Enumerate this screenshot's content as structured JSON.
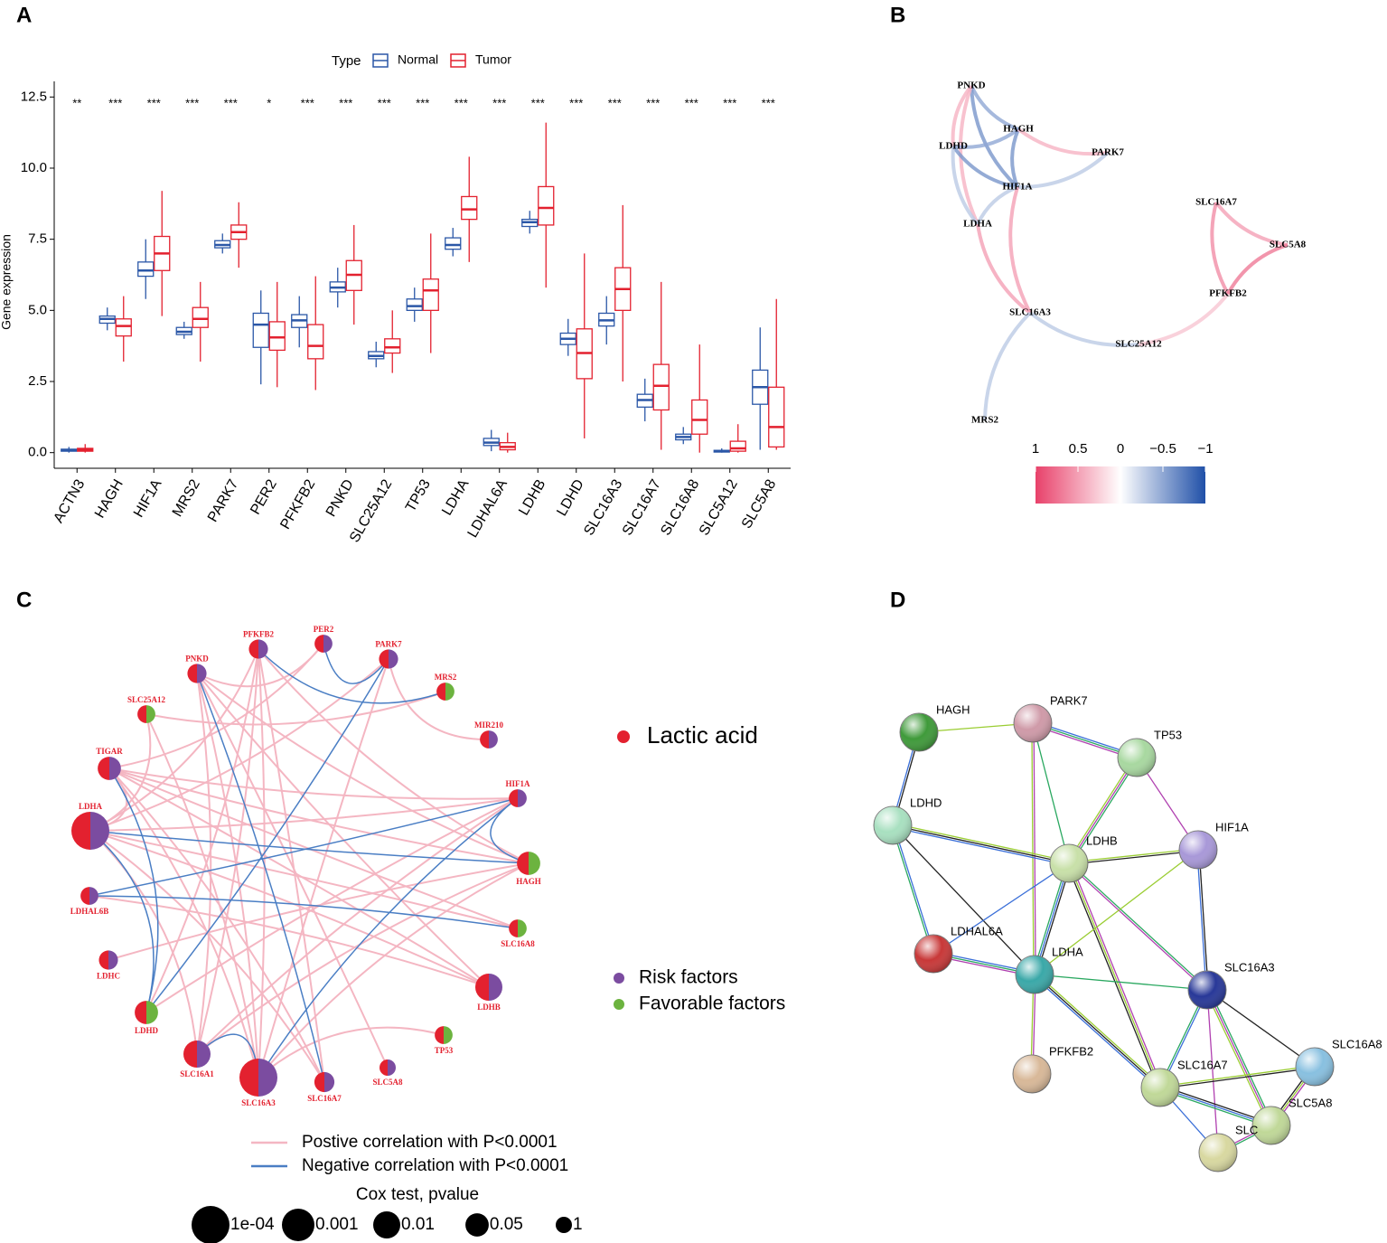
{
  "panel_labels": [
    "A",
    "B",
    "C",
    "D"
  ],
  "chart_data": [
    {
      "type": "box",
      "y_label": "Gene expression",
      "legend_title": "Type",
      "categories": [
        "ACTN3",
        "HAGH",
        "HIF1A",
        "MRS2",
        "PARK7",
        "PER2",
        "PFKFB2",
        "PNKD",
        "SLC25A12",
        "TP53",
        "LDHA",
        "LDHAL6A",
        "LDHB",
        "LDHD",
        "SLC16A3",
        "SLC16A7",
        "SLC16A8",
        "SLC5A12",
        "SLC5A8"
      ],
      "significance": [
        "**",
        "***",
        "***",
        "***",
        "***",
        "*",
        "***",
        "***",
        "***",
        "***",
        "***",
        "***",
        "***",
        "***",
        "***",
        "***",
        "***",
        "***",
        "***"
      ],
      "series": [
        {
          "name": "Normal",
          "color": "#2b57a7",
          "values": [
            [
              0,
              0.05,
              0.08,
              0.12,
              0.2
            ],
            [
              4.3,
              4.55,
              4.7,
              4.8,
              5.1
            ],
            [
              5.4,
              6.2,
              6.4,
              6.7,
              7.5
            ],
            [
              4.0,
              4.15,
              4.25,
              4.4,
              4.6
            ],
            [
              7.0,
              7.2,
              7.3,
              7.45,
              7.7
            ],
            [
              2.4,
              3.7,
              4.5,
              4.9,
              5.7
            ],
            [
              3.7,
              4.4,
              4.65,
              4.85,
              5.5
            ],
            [
              5.1,
              5.65,
              5.8,
              6.0,
              6.5
            ],
            [
              3.0,
              3.3,
              3.4,
              3.55,
              3.9
            ],
            [
              4.6,
              5.0,
              5.15,
              5.4,
              5.8
            ],
            [
              6.9,
              7.15,
              7.3,
              7.55,
              7.9
            ],
            [
              0.05,
              0.25,
              0.35,
              0.5,
              0.8
            ],
            [
              7.7,
              7.95,
              8.1,
              8.2,
              8.5
            ],
            [
              3.4,
              3.8,
              4.0,
              4.2,
              4.7
            ],
            [
              3.8,
              4.45,
              4.65,
              4.9,
              5.5
            ],
            [
              1.1,
              1.6,
              1.85,
              2.05,
              2.6
            ],
            [
              0.3,
              0.45,
              0.55,
              0.65,
              0.9
            ],
            [
              0,
              0.02,
              0.05,
              0.08,
              0.15
            ],
            [
              0.1,
              1.7,
              2.3,
              2.9,
              4.4
            ]
          ]
        },
        {
          "name": "Tumor",
          "color": "#e3212f",
          "values": [
            [
              0,
              0.05,
              0.1,
              0.15,
              0.3
            ],
            [
              3.2,
              4.1,
              4.45,
              4.7,
              5.5
            ],
            [
              4.8,
              6.4,
              7.0,
              7.6,
              9.2
            ],
            [
              3.2,
              4.4,
              4.7,
              5.1,
              6.0
            ],
            [
              6.5,
              7.5,
              7.75,
              8.0,
              8.8
            ],
            [
              2.3,
              3.6,
              4.05,
              4.6,
              6.0
            ],
            [
              2.2,
              3.3,
              3.75,
              4.5,
              6.2
            ],
            [
              4.5,
              5.7,
              6.25,
              6.75,
              8.0
            ],
            [
              2.8,
              3.5,
              3.7,
              4.0,
              5.0
            ],
            [
              3.5,
              5.0,
              5.7,
              6.1,
              7.7
            ],
            [
              6.7,
              8.2,
              8.55,
              9.0,
              10.4
            ],
            [
              0,
              0.1,
              0.2,
              0.35,
              0.7
            ],
            [
              5.8,
              8.0,
              8.6,
              9.35,
              11.6
            ],
            [
              0.5,
              2.6,
              3.5,
              4.35,
              7.0
            ],
            [
              2.5,
              5.0,
              5.75,
              6.5,
              8.7
            ],
            [
              0.1,
              1.5,
              2.35,
              3.1,
              6.0
            ],
            [
              0,
              0.65,
              1.15,
              1.85,
              3.8
            ],
            [
              0,
              0.05,
              0.15,
              0.4,
              1.0
            ],
            [
              0.1,
              0.2,
              0.9,
              2.3,
              5.4
            ]
          ]
        }
      ],
      "ylim": [
        -0.55,
        13.05
      ],
      "yticks": [
        {
          "value": 0,
          "label": "0.0"
        },
        2.5,
        {
          "value": 5,
          "label": "5.0"
        },
        7.5,
        {
          "value": 10,
          "label": "10.0"
        },
        12.5
      ]
    },
    {
      "type": "network",
      "nodes": [
        "PNKD",
        "HAGH",
        "LDHD",
        "PARK7",
        "HIF1A",
        "SLC16A7",
        "LDHA",
        "SLC5A8",
        "PFKFB2",
        "SLC16A3",
        "SLC25A12",
        "MRS2"
      ],
      "edges": [
        [
          0,
          1,
          -0.5
        ],
        [
          0,
          4,
          -0.6
        ],
        [
          0,
          2,
          0.4
        ],
        [
          0,
          6,
          0.4
        ],
        [
          2,
          1,
          -0.5
        ],
        [
          2,
          4,
          -0.6
        ],
        [
          2,
          6,
          -0.3
        ],
        [
          1,
          4,
          -0.6
        ],
        [
          1,
          3,
          0.4
        ],
        [
          4,
          3,
          -0.3
        ],
        [
          4,
          6,
          -0.3
        ],
        [
          4,
          9,
          0.5
        ],
        [
          6,
          9,
          0.5
        ],
        [
          9,
          10,
          -0.3
        ],
        [
          9,
          11,
          -0.3
        ],
        [
          10,
          8,
          0.3
        ],
        [
          5,
          7,
          0.5
        ],
        [
          5,
          8,
          0.6
        ],
        [
          7,
          8,
          0.7
        ]
      ],
      "pos_color": "#e8416a",
      "neg_color": "#2050a8",
      "colorbar_ticks": [
        1,
        0.5,
        0,
        {
          "value": -0.5,
          "label": "−0.5"
        },
        {
          "value": -1,
          "label": "−1"
        }
      ]
    },
    {
      "type": "network",
      "nodes": [
        {
          "name": "PFKFB2",
          "factor": 0,
          "pvalue": 0.3
        },
        {
          "name": "PER2",
          "factor": 0,
          "pvalue": 0.5
        },
        {
          "name": "PARK7",
          "factor": 0,
          "pvalue": 0.3
        },
        {
          "name": "MRS2",
          "factor": 1,
          "pvalue": 0.5
        },
        {
          "name": "MIR210",
          "factor": 0,
          "pvalue": 0.5
        },
        {
          "name": "HIF1A",
          "factor": 0,
          "pvalue": 0.5
        },
        {
          "name": "HAGH",
          "factor": 1,
          "pvalue": 0.05
        },
        {
          "name": "SLC16A8",
          "factor": 1,
          "pvalue": 0.5
        },
        {
          "name": "LDHB",
          "factor": 0,
          "pvalue": 0.01
        },
        {
          "name": "TP53",
          "factor": 1,
          "pvalue": 0.5
        },
        {
          "name": "SLC5A8",
          "factor": 0,
          "pvalue": 1
        },
        {
          "name": "SLC16A7",
          "factor": 0,
          "pvalue": 0.2
        },
        {
          "name": "SLC16A3",
          "factor": 0,
          "pvalue": 0.0001
        },
        {
          "name": "SLC16A1",
          "factor": 0,
          "pvalue": 0.01
        },
        {
          "name": "LDHD",
          "factor": 1,
          "pvalue": 0.05
        },
        {
          "name": "LDHC",
          "factor": 0,
          "pvalue": 0.3
        },
        {
          "name": "LDHAL6B",
          "factor": 0,
          "pvalue": 0.5
        },
        {
          "name": "LDHA",
          "factor": 0,
          "pvalue": 0.0001
        },
        {
          "name": "TIGAR",
          "factor": 0,
          "pvalue": 0.05
        },
        {
          "name": "SLC25A12",
          "factor": 1,
          "pvalue": 0.5
        },
        {
          "name": "PNKD",
          "factor": 0,
          "pvalue": 0.3
        }
      ],
      "positive": [
        [
          0,
          13
        ],
        [
          0,
          12
        ],
        [
          0,
          17
        ],
        [
          0,
          6
        ],
        [
          1,
          18
        ],
        [
          2,
          12
        ],
        [
          2,
          17
        ],
        [
          3,
          19
        ],
        [
          5,
          18
        ],
        [
          5,
          13
        ],
        [
          5,
          17
        ],
        [
          6,
          13
        ],
        [
          6,
          12
        ],
        [
          6,
          18
        ],
        [
          6,
          20
        ],
        [
          7,
          17
        ],
        [
          8,
          17
        ],
        [
          8,
          20
        ],
        [
          8,
          18
        ],
        [
          9,
          12
        ],
        [
          10,
          20
        ],
        [
          11,
          18
        ],
        [
          11,
          17
        ],
        [
          11,
          0
        ],
        [
          12,
          18
        ],
        [
          12,
          20
        ],
        [
          13,
          17
        ],
        [
          13,
          20
        ],
        [
          14,
          5
        ],
        [
          15,
          6
        ],
        [
          16,
          8
        ],
        [
          17,
          18
        ],
        [
          18,
          7
        ],
        [
          19,
          12
        ],
        [
          20,
          1
        ],
        [
          0,
          14
        ],
        [
          19,
          17
        ],
        [
          2,
          4
        ]
      ],
      "negative": [
        [
          1,
          2
        ],
        [
          2,
          14
        ],
        [
          20,
          11
        ],
        [
          5,
          16
        ],
        [
          5,
          6
        ],
        [
          6,
          17
        ],
        [
          17,
          14
        ],
        [
          18,
          14
        ],
        [
          13,
          12
        ],
        [
          12,
          5
        ],
        [
          16,
          7
        ],
        [
          0,
          3
        ]
      ],
      "lactic_label": "Lactic acid",
      "lactic_color": "#e3212f",
      "factor_labels": [
        "Risk factors",
        "Favorable factors"
      ],
      "factor_colors": [
        "#7b4ca0",
        "#6cb33f"
      ],
      "edge_labels": [
        "Postive correlation with P<0.0001",
        "Negative correlation with P<0.0001"
      ],
      "edge_colors": [
        "#f4b6c2",
        "#4a7ec4"
      ],
      "size_title": "Cox test, pvalue",
      "size_legend": [
        {
          "value": 0.0001,
          "label": "1e-04"
        },
        0.001,
        0.01,
        0.05,
        1
      ]
    },
    {
      "type": "network",
      "nodes": [
        {
          "name": "HAGH",
          "color": "#3f9a3a"
        },
        {
          "name": "PARK7",
          "color": "#cf9aa8"
        },
        {
          "name": "TP53",
          "color": "#a8d8a0"
        },
        {
          "name": "LDHD",
          "color": "#a8e0c0"
        },
        {
          "name": "LDHB",
          "color": "#c8e0a8"
        },
        {
          "name": "HIF1A",
          "color": "#a898d8"
        },
        {
          "name": "LDHAL6A",
          "color": "#c83838"
        },
        {
          "name": "LDHA",
          "color": "#3aa8a8"
        },
        {
          "name": "SLC16A3",
          "color": "#283898"
        },
        {
          "name": "PFKFB2",
          "color": "#d8b898"
        },
        {
          "name": "SLC16A8",
          "color": "#88c0e0"
        },
        {
          "name": "SLC16A7",
          "color": "#c0d898"
        },
        {
          "name": "SLC5A8",
          "color": "#c0d898"
        },
        {
          "name": "SLC",
          "color": "#d8d8a0"
        }
      ],
      "edges": [
        [
          0,
          1
        ],
        [
          0,
          3
        ],
        [
          1,
          2
        ],
        [
          1,
          4
        ],
        [
          1,
          7
        ],
        [
          3,
          4
        ],
        [
          3,
          7
        ],
        [
          3,
          6
        ],
        [
          2,
          4
        ],
        [
          2,
          5
        ],
        [
          4,
          5
        ],
        [
          4,
          7
        ],
        [
          4,
          6
        ],
        [
          4,
          8
        ],
        [
          4,
          11
        ],
        [
          5,
          7
        ],
        [
          5,
          8
        ],
        [
          6,
          7
        ],
        [
          7,
          8
        ],
        [
          7,
          9
        ],
        [
          7,
          11
        ],
        [
          8,
          10
        ],
        [
          8,
          11
        ],
        [
          8,
          12
        ],
        [
          8,
          13
        ],
        [
          11,
          10
        ],
        [
          11,
          12
        ],
        [
          11,
          13
        ],
        [
          12,
          13
        ],
        [
          10,
          12
        ]
      ]
    }
  ]
}
